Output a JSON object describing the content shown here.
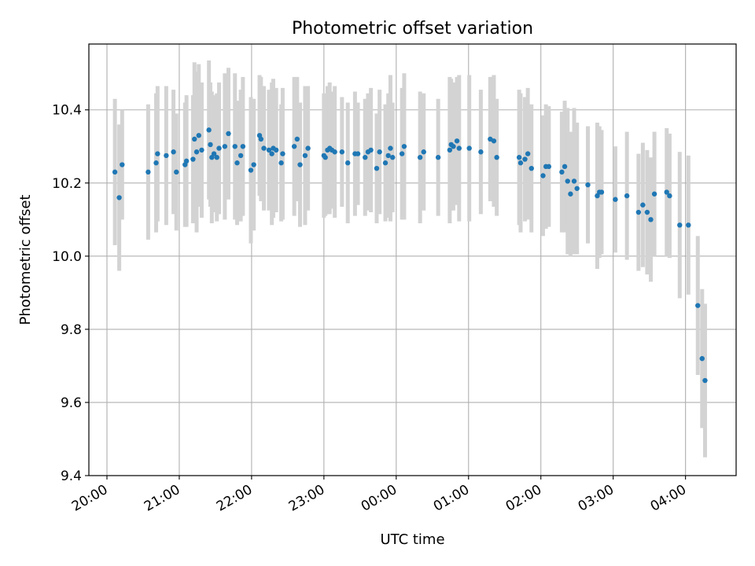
{
  "chart_data": {
    "type": "scatter",
    "title": "Photometric offset variation",
    "xlabel": "UTC time",
    "ylabel": "Photometric offset",
    "x_unit": "UTC time (hours, 20:00 = 20.0, after midnight > 24)",
    "xlim": [
      19.75,
      28.7
    ],
    "ylim": [
      9.4,
      10.58
    ],
    "x_ticks": [
      {
        "value": 20,
        "label": "20:00"
      },
      {
        "value": 21,
        "label": "21:00"
      },
      {
        "value": 22,
        "label": "22:00"
      },
      {
        "value": 23,
        "label": "23:00"
      },
      {
        "value": 24,
        "label": "00:00"
      },
      {
        "value": 25,
        "label": "01:00"
      },
      {
        "value": 26,
        "label": "02:00"
      },
      {
        "value": 27,
        "label": "03:00"
      },
      {
        "value": 28,
        "label": "04:00"
      }
    ],
    "y_ticks": [
      {
        "value": 9.4,
        "label": "9.4"
      },
      {
        "value": 9.6,
        "label": "9.6"
      },
      {
        "value": 9.8,
        "label": "9.8"
      },
      {
        "value": 10.0,
        "label": "10.0"
      },
      {
        "value": 10.2,
        "label": "10.2"
      },
      {
        "value": 10.4,
        "label": "10.4"
      }
    ],
    "grid": true,
    "colors": {
      "points": "#1f77b4",
      "errorbars": "#d3d3d3",
      "grid": "#b0b0b0"
    },
    "series": [
      {
        "points": [
          [
            20.11,
            10.23,
            0.2
          ],
          [
            20.17,
            10.16,
            0.2
          ],
          [
            20.21,
            10.25,
            0.15
          ],
          [
            20.57,
            10.23,
            0.185
          ],
          [
            20.68,
            10.255,
            0.19
          ],
          [
            20.7,
            10.28,
            0.185
          ],
          [
            20.82,
            10.275,
            0.19
          ],
          [
            20.92,
            10.285,
            0.17
          ],
          [
            20.96,
            10.23,
            0.16
          ],
          [
            21.08,
            10.25,
            0.17
          ],
          [
            21.1,
            10.26,
            0.18
          ],
          [
            21.19,
            10.265,
            0.175
          ],
          [
            21.21,
            10.32,
            0.21
          ],
          [
            21.24,
            10.285,
            0.22
          ],
          [
            21.27,
            10.33,
            0.195
          ],
          [
            21.31,
            10.29,
            0.185
          ],
          [
            21.41,
            10.345,
            0.19
          ],
          [
            21.43,
            10.305,
            0.17
          ],
          [
            21.45,
            10.27,
            0.18
          ],
          [
            21.48,
            10.28,
            0.16
          ],
          [
            21.52,
            10.27,
            0.175
          ],
          [
            21.55,
            10.295,
            0.18
          ],
          [
            21.63,
            10.3,
            0.2
          ],
          [
            21.68,
            10.335,
            0.18
          ],
          [
            21.77,
            10.3,
            0.2
          ],
          [
            21.8,
            10.255,
            0.17
          ],
          [
            21.85,
            10.275,
            0.18
          ],
          [
            21.88,
            10.3,
            0.19
          ],
          [
            21.99,
            10.235,
            0.2
          ],
          [
            22.03,
            10.25,
            0.18
          ],
          [
            22.11,
            10.33,
            0.165
          ],
          [
            22.13,
            10.32,
            0.17
          ],
          [
            22.17,
            10.295,
            0.17
          ],
          [
            22.24,
            10.29,
            0.165
          ],
          [
            22.28,
            10.28,
            0.195
          ],
          [
            22.3,
            10.295,
            0.19
          ],
          [
            22.34,
            10.29,
            0.17
          ],
          [
            22.41,
            10.255,
            0.16
          ],
          [
            22.43,
            10.28,
            0.18
          ],
          [
            22.59,
            10.3,
            0.19
          ],
          [
            22.63,
            10.32,
            0.17
          ],
          [
            22.67,
            10.25,
            0.17
          ],
          [
            22.74,
            10.275,
            0.19
          ],
          [
            22.78,
            10.295,
            0.17
          ],
          [
            23.0,
            10.275,
            0.17
          ],
          [
            23.02,
            10.27,
            0.16
          ],
          [
            23.05,
            10.29,
            0.175
          ],
          [
            23.08,
            10.295,
            0.18
          ],
          [
            23.11,
            10.29,
            0.16
          ],
          [
            23.15,
            10.285,
            0.18
          ],
          [
            23.25,
            10.285,
            0.15
          ],
          [
            23.33,
            10.255,
            0.165
          ],
          [
            23.43,
            10.28,
            0.17
          ],
          [
            23.47,
            10.28,
            0.14
          ],
          [
            23.57,
            10.27,
            0.16
          ],
          [
            23.61,
            10.285,
            0.16
          ],
          [
            23.65,
            10.29,
            0.17
          ],
          [
            23.73,
            10.24,
            0.15
          ],
          [
            23.77,
            10.285,
            0.17
          ],
          [
            23.85,
            10.255,
            0.16
          ],
          [
            23.89,
            10.275,
            0.17
          ],
          [
            23.92,
            10.295,
            0.2
          ],
          [
            23.95,
            10.27,
            0.15
          ],
          [
            24.08,
            10.28,
            0.18
          ],
          [
            24.11,
            10.3,
            0.2
          ],
          [
            24.33,
            10.27,
            0.18
          ],
          [
            24.38,
            10.285,
            0.16
          ],
          [
            24.58,
            10.27,
            0.16
          ],
          [
            24.74,
            10.29,
            0.2
          ],
          [
            24.76,
            10.305,
            0.18
          ],
          [
            24.79,
            10.3,
            0.175
          ],
          [
            24.84,
            10.315,
            0.175
          ],
          [
            24.87,
            10.295,
            0.2
          ],
          [
            25.01,
            10.295,
            0.2
          ],
          [
            25.17,
            10.285,
            0.17
          ],
          [
            25.3,
            10.32,
            0.17
          ],
          [
            25.35,
            10.315,
            0.18
          ],
          [
            25.39,
            10.27,
            0.16
          ],
          [
            25.7,
            10.27,
            0.185
          ],
          [
            25.72,
            10.255,
            0.19
          ],
          [
            25.78,
            10.265,
            0.17
          ],
          [
            25.82,
            10.28,
            0.18
          ],
          [
            25.87,
            10.24,
            0.175
          ],
          [
            26.03,
            10.22,
            0.165
          ],
          [
            26.07,
            10.245,
            0.17
          ],
          [
            26.11,
            10.245,
            0.165
          ],
          [
            26.29,
            10.23,
            0.165
          ],
          [
            26.33,
            10.245,
            0.18
          ],
          [
            26.37,
            10.205,
            0.2
          ],
          [
            26.41,
            10.17,
            0.17
          ],
          [
            26.46,
            10.205,
            0.2
          ],
          [
            26.5,
            10.185,
            0.18
          ],
          [
            26.65,
            10.195,
            0.16
          ],
          [
            26.78,
            10.165,
            0.2
          ],
          [
            26.81,
            10.175,
            0.18
          ],
          [
            26.84,
            10.175,
            0.17
          ],
          [
            27.03,
            10.155,
            0.145
          ],
          [
            27.19,
            10.165,
            0.175
          ],
          [
            27.35,
            10.12,
            0.16
          ],
          [
            27.41,
            10.14,
            0.17
          ],
          [
            27.47,
            10.12,
            0.17
          ],
          [
            27.52,
            10.1,
            0.17
          ],
          [
            27.57,
            10.17,
            0.17
          ],
          [
            27.74,
            10.175,
            0.175
          ],
          [
            27.78,
            10.165,
            0.17
          ],
          [
            27.92,
            10.085,
            0.2
          ],
          [
            28.04,
            10.085,
            0.19
          ],
          [
            28.17,
            9.865,
            0.19
          ],
          [
            28.23,
            9.72,
            0.19
          ],
          [
            28.27,
            9.66,
            0.21
          ]
        ]
      }
    ]
  }
}
